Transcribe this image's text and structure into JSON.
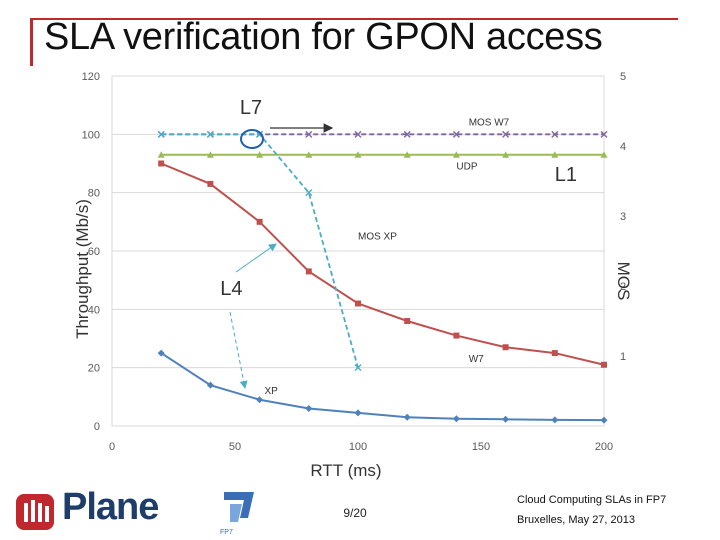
{
  "slide": {
    "title": "SLA verification for GPON access",
    "page": "9/20",
    "footer_line1": "Cloud Computing SLAs in FP7",
    "footer_line2": "Bruxelles, May 27, 2013",
    "logo_text": "Plane",
    "fp7_label": "FP7"
  },
  "chart_data": {
    "type": "line",
    "xlabel": "RTT (ms)",
    "ylabel": "Throughput (Mb/s)",
    "y2label": "MOS",
    "xlim": [
      0,
      200
    ],
    "ylim": [
      0,
      120
    ],
    "y2lim": [
      0,
      5
    ],
    "xticks": [
      "0",
      "50",
      "100",
      "150",
      "200"
    ],
    "yticks": [
      "0",
      "20",
      "40",
      "60",
      "80",
      "100",
      "120"
    ],
    "y2ticks": [
      "1",
      "2",
      "3",
      "4",
      "5"
    ],
    "grid": true,
    "series": [
      {
        "name": "UDP",
        "axis": "left",
        "color": "#9bbb59",
        "dashed": false,
        "marker": "triangle",
        "x": [
          20,
          40,
          60,
          80,
          100,
          120,
          140,
          160,
          180,
          200
        ],
        "y": [
          93,
          93,
          93,
          93,
          93,
          93,
          93,
          93,
          93,
          93
        ]
      },
      {
        "name": "MOS W7",
        "axis": "left",
        "color": "#8064a2",
        "dashed": true,
        "marker": "none",
        "x": [
          20,
          200
        ],
        "y": [
          100,
          100
        ]
      },
      {
        "name": "W7",
        "axis": "left",
        "color": "#c0504d",
        "dashed": false,
        "marker": "square",
        "x": [
          20,
          40,
          60,
          80,
          100,
          120,
          140,
          160,
          180,
          200
        ],
        "y": [
          90,
          83,
          70,
          53,
          42,
          36,
          31,
          27,
          25,
          21
        ]
      },
      {
        "name": "XP",
        "axis": "left",
        "color": "#4f81bd",
        "dashed": false,
        "marker": "diamond",
        "x": [
          20,
          40,
          60,
          80,
          100,
          120,
          140,
          160,
          180,
          200
        ],
        "y": [
          25,
          14,
          9,
          6,
          4.5,
          3,
          2.5,
          2.3,
          2.1,
          2
        ]
      },
      {
        "name": "MOS XP",
        "axis": "left",
        "color": "#4bacc6",
        "dashed": true,
        "marker": "x",
        "x": [
          20,
          40,
          60,
          80,
          100
        ],
        "y": [
          100,
          100,
          100,
          80,
          20
        ]
      }
    ],
    "annotations": [
      {
        "text": "L7",
        "x": 52,
        "y": 107
      },
      {
        "text": "L1",
        "x": 180,
        "y": 84
      },
      {
        "text": "L4",
        "x": 44,
        "y": 45
      },
      {
        "text": "UDP",
        "x": 140,
        "y": 88
      },
      {
        "text": "MOS W7",
        "x": 145,
        "y": 103
      },
      {
        "text": "MOS XP",
        "x": 100,
        "y": 64
      },
      {
        "text": "W7",
        "x": 145,
        "y": 22
      },
      {
        "text": "XP",
        "x": 62,
        "y": 11
      }
    ]
  },
  "colors": {
    "accent": "#c0282d",
    "logo": "#1f3d6b"
  }
}
